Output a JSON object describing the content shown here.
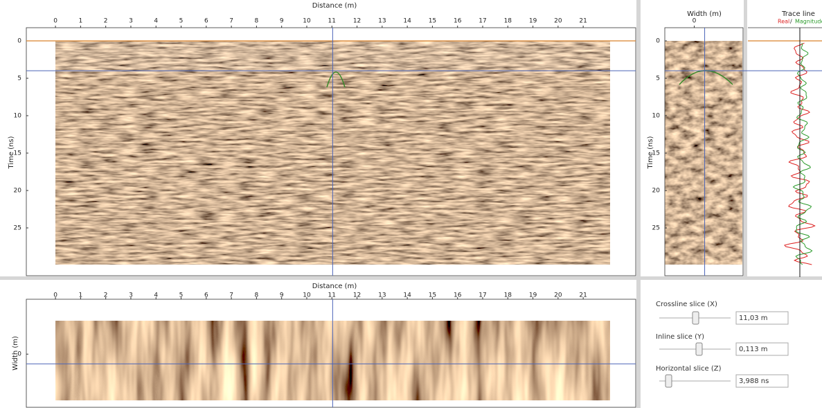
{
  "main": {
    "title": "Distance (m)",
    "y_label": "Time (ns)",
    "xlim": [
      -1.16,
      23.09
    ],
    "ylim": [
      -1.76,
      31.39
    ],
    "xticks": [
      0,
      1,
      2,
      3,
      4,
      5,
      6,
      7,
      8,
      9,
      10,
      11,
      12,
      13,
      14,
      15,
      16,
      17,
      18,
      19,
      20,
      21
    ],
    "yticks": [
      0,
      5,
      10,
      15,
      20,
      25
    ]
  },
  "slice": {
    "title": "Distance (m)",
    "y_label": "Width (m)",
    "xlim": [
      -1.16,
      23.09
    ],
    "ylim": [
      -0.64,
      0.62
    ],
    "xticks": [
      0,
      1,
      2,
      3,
      4,
      5,
      6,
      7,
      8,
      9,
      10,
      11,
      12,
      13,
      14,
      15,
      16,
      17,
      18,
      19,
      20,
      21
    ],
    "yticks": [
      0
    ]
  },
  "section": {
    "title": "Width (m)",
    "y_label": "Time (ns)",
    "xlim": [
      -0.32,
      0.53
    ],
    "ylim": [
      -1.76,
      31.39
    ],
    "xticks": [
      0
    ],
    "yticks": [
      0,
      5,
      10,
      15,
      20,
      25
    ]
  },
  "trace": {
    "title": "Trace line",
    "real_label": "Real",
    "separator": "/",
    "magnitude_label": "Magnitude"
  },
  "controls": [
    {
      "label": "Crossline slice (X)",
      "value": 11.03,
      "value_label": "11,03 m"
    },
    {
      "label": "Inline slice (Y)",
      "value": 0.113,
      "value_label": "0,113 m"
    },
    {
      "label": "Horizontal slice (Z)",
      "value": 3.988,
      "value_label": "3,988 ns"
    }
  ]
}
